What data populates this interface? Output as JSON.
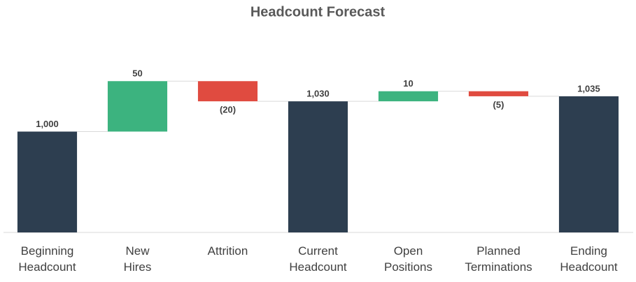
{
  "chart_data": {
    "type": "waterfall",
    "title": "Headcount Forecast",
    "categories": [
      "Beginning Headcount",
      "New Hires",
      "Attrition",
      "Current Headcount",
      "Open Positions",
      "Planned Terminations",
      "Ending Headcount"
    ],
    "values": [
      1000,
      50,
      -20,
      1030,
      10,
      -5,
      1035
    ],
    "value_labels": [
      "1,000",
      "50",
      "(20)",
      "1,030",
      "10",
      "(5)",
      "1,035"
    ],
    "measures": [
      "absolute",
      "relative",
      "relative",
      "absolute",
      "relative",
      "relative",
      "absolute"
    ],
    "colors": {
      "absolute": "#2d3e50",
      "increase": "#3cb37f",
      "decrease": "#e04b40"
    },
    "ylim": [
      900,
      1100
    ]
  }
}
